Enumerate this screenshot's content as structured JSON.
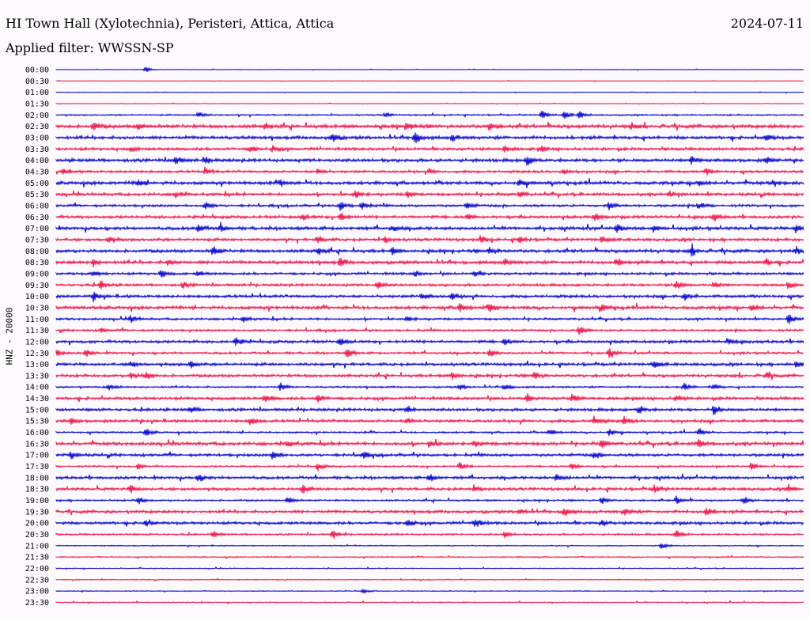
{
  "header": {
    "station": "HI Town Hall (Xylotechnia), Peristeri, Attica, Attica",
    "date": "2024-07-11",
    "filter": "Applied filter: WWSSN-SP"
  },
  "chart_data": {
    "type": "line",
    "title": "HI Town Hall (Xylotechnia), Peristeri, Attica, Attica",
    "ylabel": "HNZ - 20000",
    "row_labels": [
      "00:00",
      "00:30",
      "01:00",
      "01:30",
      "02:00",
      "02:30",
      "03:00",
      "03:30",
      "04:00",
      "04:30",
      "05:00",
      "05:30",
      "06:00",
      "06:30",
      "07:00",
      "07:30",
      "08:00",
      "08:30",
      "09:00",
      "09:30",
      "10:00",
      "10:30",
      "11:00",
      "11:30",
      "12:00",
      "12:30",
      "13:00",
      "13:30",
      "14:00",
      "14:30",
      "15:00",
      "15:30",
      "16:00",
      "16:30",
      "17:00",
      "17:30",
      "18:00",
      "18:30",
      "19:00",
      "19:30",
      "20:00",
      "20:30",
      "21:00",
      "21:30",
      "22:00",
      "22:30",
      "23:00",
      "23:30"
    ],
    "colors": [
      "#0000cc",
      "#ee1144"
    ],
    "noise_level": [
      0.3,
      0.3,
      0.3,
      0.3,
      0.8,
      2.0,
      1.8,
      1.6,
      1.8,
      1.4,
      1.8,
      1.6,
      1.4,
      1.6,
      1.8,
      1.6,
      1.8,
      1.8,
      1.4,
      1.4,
      1.6,
      1.8,
      1.2,
      1.2,
      1.6,
      1.2,
      1.6,
      1.6,
      1.0,
      1.6,
      1.6,
      1.6,
      1.0,
      1.8,
      1.6,
      1.0,
      1.6,
      1.6,
      1.0,
      1.6,
      1.6,
      1.0,
      0.6,
      0.6,
      0.5,
      0.5,
      0.5,
      0.6
    ],
    "events": [
      [
        [
          0.12,
          4
        ]
      ],
      [],
      [],
      [],
      [
        [
          0.19,
          5
        ],
        [
          0.44,
          3
        ],
        [
          0.65,
          6
        ],
        [
          0.68,
          5
        ],
        [
          0.7,
          5
        ]
      ],
      [
        [
          0.05,
          5
        ],
        [
          0.11,
          4
        ],
        [
          0.28,
          4
        ],
        [
          0.47,
          5
        ],
        [
          0.58,
          5
        ],
        [
          0.77,
          4
        ]
      ],
      [
        [
          0.37,
          6
        ],
        [
          0.48,
          7
        ],
        [
          0.53,
          4
        ],
        [
          0.95,
          4
        ]
      ],
      [
        [
          0.1,
          3
        ],
        [
          0.26,
          5
        ],
        [
          0.29,
          4
        ],
        [
          0.6,
          4
        ],
        [
          0.65,
          3
        ]
      ],
      [
        [
          0.16,
          5
        ],
        [
          0.2,
          4
        ],
        [
          0.63,
          6
        ],
        [
          0.85,
          6
        ],
        [
          0.95,
          4
        ]
      ],
      [
        [
          0.01,
          4
        ],
        [
          0.2,
          4
        ],
        [
          0.35,
          4
        ],
        [
          0.5,
          3
        ],
        [
          0.68,
          4
        ],
        [
          0.87,
          4
        ]
      ],
      [
        [
          0.11,
          5
        ],
        [
          0.3,
          4
        ],
        [
          0.62,
          5
        ],
        [
          0.86,
          4
        ],
        [
          0.96,
          4
        ]
      ],
      [
        [
          0.16,
          4
        ],
        [
          0.4,
          5
        ],
        [
          0.47,
          4
        ],
        [
          0.62,
          4
        ],
        [
          0.82,
          4
        ]
      ],
      [
        [
          0.2,
          5
        ],
        [
          0.38,
          6
        ],
        [
          0.41,
          5
        ],
        [
          0.55,
          4
        ],
        [
          0.74,
          5
        ],
        [
          0.86,
          4
        ]
      ],
      [
        [
          0.33,
          4
        ],
        [
          0.38,
          6
        ],
        [
          0.55,
          4
        ],
        [
          0.72,
          5
        ],
        [
          0.88,
          5
        ]
      ],
      [
        [
          0.19,
          5
        ],
        [
          0.22,
          4
        ],
        [
          0.45,
          4
        ],
        [
          0.75,
          5
        ],
        [
          0.8,
          5
        ],
        [
          0.99,
          6
        ]
      ],
      [
        [
          0.07,
          4
        ],
        [
          0.35,
          5
        ],
        [
          0.44,
          4
        ],
        [
          0.57,
          4
        ],
        [
          0.62,
          4
        ],
        [
          0.73,
          5
        ]
      ],
      [
        [
          0.21,
          6
        ],
        [
          0.35,
          5
        ],
        [
          0.45,
          4
        ],
        [
          0.58,
          5
        ],
        [
          0.85,
          6
        ],
        [
          0.99,
          5
        ]
      ],
      [
        [
          0.05,
          5
        ],
        [
          0.15,
          4
        ],
        [
          0.38,
          6
        ],
        [
          0.6,
          4
        ],
        [
          0.75,
          5
        ],
        [
          0.95,
          4
        ]
      ],
      [
        [
          0.05,
          4
        ],
        [
          0.14,
          5
        ],
        [
          0.19,
          4
        ],
        [
          0.48,
          4
        ],
        [
          0.56,
          3
        ]
      ],
      [
        [
          0.06,
          5
        ],
        [
          0.17,
          4
        ],
        [
          0.43,
          5
        ],
        [
          0.83,
          6
        ],
        [
          0.88,
          4
        ],
        [
          0.98,
          5
        ]
      ],
      [
        [
          0.05,
          5
        ],
        [
          0.49,
          5
        ],
        [
          0.53,
          4
        ],
        [
          0.84,
          5
        ]
      ],
      [
        [
          0.54,
          6
        ],
        [
          0.58,
          5
        ],
        [
          0.73,
          5
        ],
        [
          0.93,
          5
        ]
      ],
      [
        [
          0.1,
          5
        ],
        [
          0.25,
          4
        ],
        [
          0.47,
          4
        ],
        [
          0.98,
          6
        ]
      ],
      [
        [
          0.06,
          3
        ],
        [
          0.7,
          6
        ]
      ],
      [
        [
          0.24,
          5
        ],
        [
          0.38,
          5
        ],
        [
          0.6,
          4
        ],
        [
          0.9,
          4
        ]
      ],
      [
        [
          0.0,
          5
        ],
        [
          0.04,
          5
        ],
        [
          0.39,
          6
        ],
        [
          0.58,
          5
        ],
        [
          0.74,
          6
        ]
      ],
      [
        [
          0.1,
          4
        ],
        [
          0.18,
          5
        ],
        [
          0.8,
          5
        ],
        [
          0.99,
          5
        ]
      ],
      [
        [
          0.1,
          4
        ],
        [
          0.12,
          5
        ],
        [
          0.53,
          5
        ],
        [
          0.64,
          6
        ],
        [
          0.95,
          4
        ]
      ],
      [
        [
          0.07,
          4
        ],
        [
          0.3,
          5
        ],
        [
          0.54,
          4
        ],
        [
          0.6,
          4
        ],
        [
          0.84,
          5
        ],
        [
          0.88,
          4
        ]
      ],
      [
        [
          0.28,
          5
        ],
        [
          0.35,
          5
        ],
        [
          0.63,
          4
        ],
        [
          0.69,
          5
        ],
        [
          0.83,
          4
        ]
      ],
      [
        [
          0.18,
          4
        ],
        [
          0.47,
          4
        ],
        [
          0.78,
          6
        ],
        [
          0.88,
          6
        ]
      ],
      [
        [
          0.02,
          4
        ],
        [
          0.26,
          5
        ],
        [
          0.47,
          4
        ],
        [
          0.72,
          6
        ],
        [
          0.76,
          5
        ]
      ],
      [
        [
          0.12,
          5
        ],
        [
          0.66,
          5
        ],
        [
          0.74,
          5
        ],
        [
          0.86,
          5
        ]
      ],
      [
        [
          0.31,
          4
        ],
        [
          0.5,
          5
        ],
        [
          0.56,
          4
        ],
        [
          0.73,
          5
        ],
        [
          0.86,
          5
        ]
      ],
      [
        [
          0.02,
          5
        ],
        [
          0.29,
          6
        ],
        [
          0.41,
          4
        ],
        [
          0.72,
          4
        ]
      ],
      [
        [
          0.11,
          4
        ],
        [
          0.35,
          5
        ],
        [
          0.54,
          5
        ],
        [
          0.69,
          5
        ],
        [
          0.93,
          5
        ]
      ],
      [
        [
          0.19,
          6
        ],
        [
          0.5,
          5
        ],
        [
          0.67,
          6
        ]
      ],
      [
        [
          0.1,
          5
        ],
        [
          0.33,
          5
        ],
        [
          0.56,
          4
        ],
        [
          0.8,
          5
        ],
        [
          0.98,
          5
        ]
      ],
      [
        [
          0.11,
          5
        ],
        [
          0.31,
          5
        ],
        [
          0.73,
          5
        ],
        [
          0.83,
          5
        ],
        [
          0.92,
          5
        ]
      ],
      [
        [
          0.62,
          4
        ],
        [
          0.68,
          6
        ],
        [
          0.76,
          5
        ],
        [
          0.87,
          6
        ]
      ],
      [
        [
          0.12,
          4
        ],
        [
          0.47,
          6
        ],
        [
          0.56,
          6
        ],
        [
          0.73,
          4
        ]
      ],
      [
        [
          0.21,
          4
        ],
        [
          0.37,
          6
        ],
        [
          0.6,
          4
        ],
        [
          0.83,
          6
        ]
      ],
      [
        [
          0.81,
          4
        ]
      ],
      [],
      [],
      [],
      [
        [
          0.41,
          3
        ]
      ],
      []
    ]
  }
}
